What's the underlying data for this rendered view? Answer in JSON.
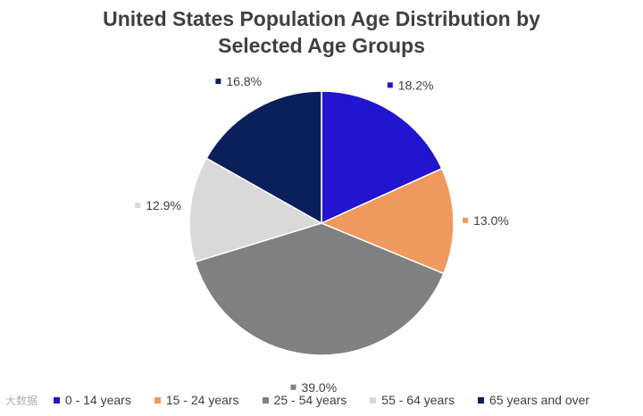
{
  "chart_data": {
    "type": "pie",
    "title_lines": [
      "United States Population Age Distribution by",
      "Selected Age Groups"
    ],
    "slices": [
      {
        "name": "0 - 14 years",
        "value": 18.2,
        "label": "18.2%",
        "color": "#2314CF"
      },
      {
        "name": "15 - 24 years",
        "value": 13.0,
        "label": "13.0%",
        "color": "#F0995E"
      },
      {
        "name": "25 - 54 years",
        "value": 39.0,
        "label": "39.0%",
        "color": "#808080"
      },
      {
        "name": "55 - 64 years",
        "value": 12.9,
        "label": "12.9%",
        "color": "#D9D9D9"
      },
      {
        "name": "65 years and over",
        "value": 16.8,
        "label": "16.8%",
        "color": "#0A1F5C"
      }
    ],
    "legend_position": "bottom",
    "start_angle": "12 o'clock, clockwise"
  },
  "watermark": "大数据"
}
